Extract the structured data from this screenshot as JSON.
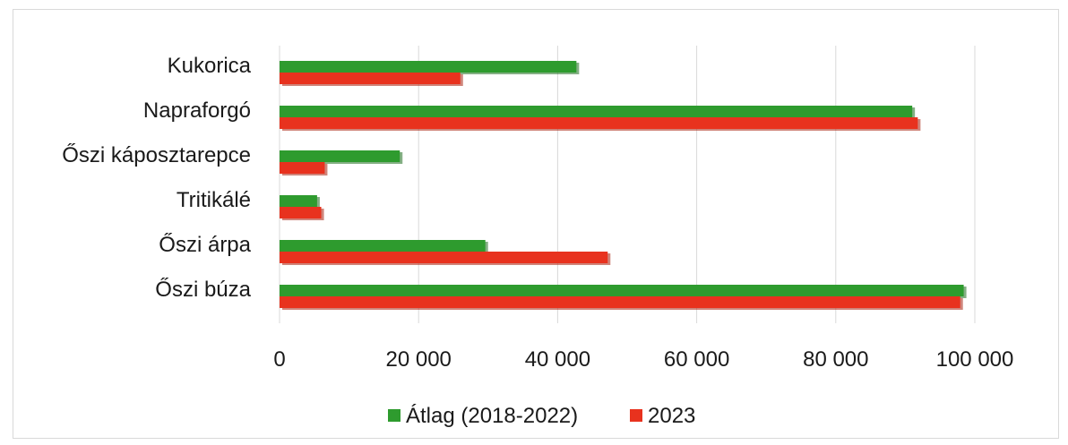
{
  "chart_data": {
    "type": "bar",
    "orientation": "horizontal",
    "categories": [
      "Kukorica",
      "Napraforgó",
      "Őszi káposztarepce",
      "Tritikálé",
      "Őszi árpa",
      "Őszi búza"
    ],
    "series": [
      {
        "name": "Átlag (2018-2022)",
        "color": "#2e9b2e",
        "values": [
          42700,
          91000,
          17300,
          5400,
          29600,
          98400
        ]
      },
      {
        "name": "2023",
        "color": "#e8321e",
        "values": [
          26000,
          91800,
          6500,
          6000,
          47200,
          97900
        ]
      }
    ],
    "xlim": [
      0,
      100000
    ],
    "xticks": [
      0,
      20000,
      40000,
      60000,
      80000,
      100000
    ],
    "xtick_labels": [
      "0",
      "20 000",
      "40 000",
      "60 000",
      "80 000",
      "100 000"
    ],
    "grid": "vertical",
    "legend_position": "bottom",
    "title": "",
    "xlabel": "",
    "ylabel": ""
  }
}
